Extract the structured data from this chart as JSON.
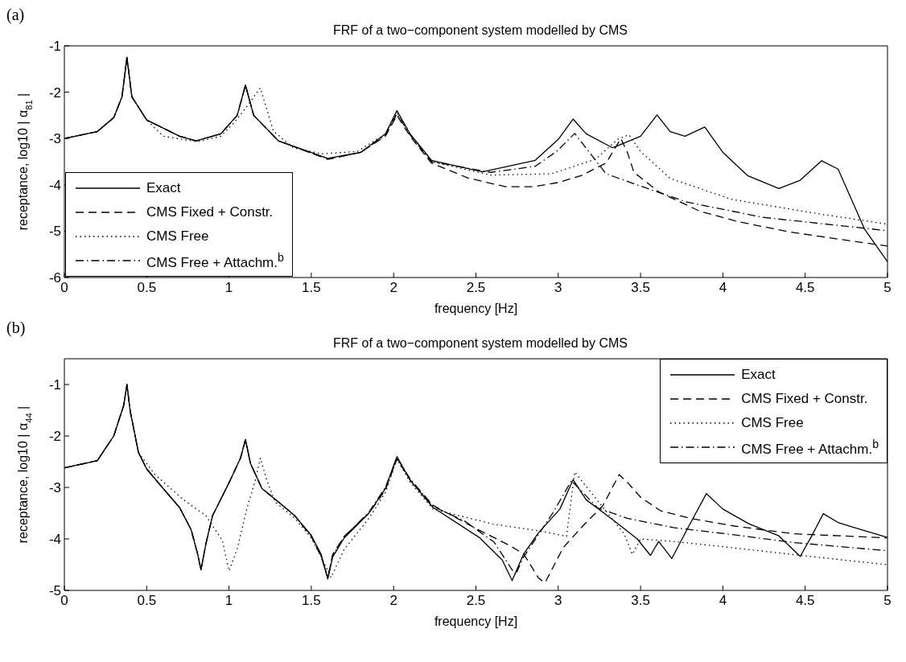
{
  "chart_data": [
    {
      "type": "line",
      "title": "FRF of a two−component system modelled by CMS",
      "xlabel": "frequency [Hz]",
      "ylabel": "receptance, log10 | α$_{81}$ |",
      "annotations": [
        "(a)"
      ],
      "xlim": [
        0,
        5
      ],
      "xticks": [
        0,
        0.5,
        1,
        1.5,
        2,
        2.5,
        3,
        3.5,
        4,
        4.5,
        5
      ],
      "ylim": [
        -6,
        -1
      ],
      "yticks": [
        -6,
        -5,
        -4,
        -3,
        -2,
        -1
      ],
      "legend": "bottom left",
      "series": [
        {
          "name": "Exact",
          "color": "#000000",
          "line_style": "solid",
          "x": [
            0,
            0.2,
            0.3,
            0.35,
            0.38,
            0.41,
            0.5,
            0.7,
            0.8,
            0.95,
            1.05,
            1.1,
            1.15,
            1.3,
            1.6,
            1.8,
            1.95,
            2.02,
            2.1,
            2.23,
            2.54,
            2.86,
            3.0,
            3.09,
            3.17,
            3.33,
            3.5,
            3.6,
            3.68,
            3.77,
            3.89,
            4.0,
            4.15,
            4.34,
            4.47,
            4.6,
            4.7,
            4.86,
            5.0
          ],
          "values": [
            -3.0,
            -2.85,
            -2.55,
            -2.1,
            -1.25,
            -2.1,
            -2.6,
            -2.95,
            -3.05,
            -2.9,
            -2.5,
            -1.85,
            -2.5,
            -3.05,
            -3.43,
            -3.3,
            -2.9,
            -2.4,
            -2.9,
            -3.47,
            -3.72,
            -3.47,
            -3.02,
            -2.58,
            -2.9,
            -3.2,
            -2.95,
            -2.49,
            -2.85,
            -2.95,
            -2.75,
            -3.3,
            -3.8,
            -4.08,
            -3.9,
            -3.48,
            -3.66,
            -4.95,
            -5.66
          ]
        },
        {
          "name": "CMS Fixed + Constr.",
          "color": "#000000",
          "line_style": "dashed",
          "x": [
            0,
            0.2,
            0.3,
            0.35,
            0.38,
            0.41,
            0.5,
            0.7,
            0.8,
            0.95,
            1.05,
            1.1,
            1.15,
            1.3,
            1.6,
            1.8,
            1.95,
            2.02,
            2.1,
            2.23,
            2.45,
            2.68,
            2.85,
            3.0,
            3.14,
            3.29,
            3.35,
            3.38,
            3.42,
            3.46,
            3.61,
            3.86,
            4.1,
            4.41,
            4.7,
            4.92,
            5.0
          ],
          "values": [
            -3.0,
            -2.85,
            -2.55,
            -2.1,
            -1.25,
            -2.1,
            -2.6,
            -2.95,
            -3.05,
            -2.9,
            -2.5,
            -1.85,
            -2.5,
            -3.05,
            -3.45,
            -3.3,
            -2.95,
            -2.5,
            -2.95,
            -3.53,
            -3.85,
            -4.04,
            -4.04,
            -3.95,
            -3.8,
            -3.53,
            -3.18,
            -3.0,
            -3.3,
            -3.73,
            -4.15,
            -4.57,
            -4.8,
            -5.02,
            -5.17,
            -5.28,
            -5.32
          ]
        },
        {
          "name": "CMS Free",
          "color": "#000000",
          "line_style": "dotted",
          "x": [
            0,
            0.2,
            0.3,
            0.35,
            0.38,
            0.41,
            0.5,
            0.6,
            0.81,
            0.95,
            1.03,
            1.1,
            1.19,
            1.27,
            1.39,
            1.56,
            1.78,
            1.95,
            2.02,
            2.1,
            2.23,
            2.59,
            2.96,
            3.23,
            3.36,
            3.43,
            3.5,
            3.68,
            4.05,
            4.59,
            4.97,
            5.0
          ],
          "values": [
            -3.0,
            -2.85,
            -2.55,
            -2.1,
            -1.25,
            -2.1,
            -2.6,
            -2.95,
            -3.07,
            -2.95,
            -2.66,
            -2.35,
            -1.91,
            -2.84,
            -3.2,
            -3.33,
            -3.28,
            -2.9,
            -2.45,
            -2.9,
            -3.5,
            -3.79,
            -3.76,
            -3.44,
            -3.02,
            -2.92,
            -3.28,
            -3.86,
            -4.31,
            -4.63,
            -4.83,
            -4.85
          ]
        },
        {
          "name": "CMS Free + Attachm.$^{b}$",
          "color": "#000000",
          "line_style": "dashdot",
          "x": [
            0,
            0.2,
            0.3,
            0.35,
            0.38,
            0.41,
            0.5,
            0.7,
            0.8,
            0.95,
            1.05,
            1.1,
            1.15,
            1.3,
            1.6,
            1.8,
            1.95,
            2.02,
            2.1,
            2.23,
            2.59,
            2.86,
            2.99,
            3.1,
            3.17,
            3.29,
            3.47,
            3.78,
            4.24,
            5.0
          ],
          "values": [
            -3.0,
            -2.85,
            -2.55,
            -2.1,
            -1.25,
            -2.1,
            -2.6,
            -2.95,
            -3.05,
            -2.9,
            -2.5,
            -1.85,
            -2.5,
            -3.05,
            -3.44,
            -3.3,
            -2.93,
            -2.47,
            -2.92,
            -3.5,
            -3.73,
            -3.6,
            -3.28,
            -2.89,
            -3.21,
            -3.76,
            -3.99,
            -4.37,
            -4.7,
            -4.99
          ]
        }
      ]
    },
    {
      "type": "line",
      "title": "FRF of a two−component system modelled by CMS",
      "xlabel": "frequency [Hz]",
      "ylabel": "receptance, log10 | α$_{44}$ |",
      "annotations": [
        "(b)"
      ],
      "xlim": [
        0,
        5
      ],
      "xticks": [
        0,
        0.5,
        1,
        1.5,
        2,
        2.5,
        3,
        3.5,
        4,
        4.5,
        5
      ],
      "ylim": [
        -5,
        -0.5
      ],
      "yticks": [
        -5,
        -4,
        -3,
        -2,
        -1
      ],
      "legend": "top right",
      "series": [
        {
          "name": "Exact",
          "color": "#000000",
          "line_style": "solid",
          "x": [
            0,
            0.2,
            0.3,
            0.36,
            0.38,
            0.4,
            0.45,
            0.5,
            0.6,
            0.7,
            0.77,
            0.81,
            0.83,
            0.86,
            0.9,
            1.0,
            1.07,
            1.1,
            1.13,
            1.2,
            1.3,
            1.4,
            1.5,
            1.56,
            1.6,
            1.63,
            1.7,
            1.85,
            1.95,
            2.02,
            2.1,
            2.24,
            2.52,
            2.66,
            2.72,
            2.79,
            2.88,
            3.01,
            3.09,
            3.17,
            3.34,
            3.48,
            3.56,
            3.61,
            3.69,
            3.8,
            3.9,
            4.0,
            4.16,
            4.34,
            4.47,
            4.54,
            4.61,
            4.7,
            4.79,
            5.0
          ],
          "values": [
            -2.62,
            -2.48,
            -2.0,
            -1.41,
            -1.0,
            -1.52,
            -2.32,
            -2.64,
            -3.02,
            -3.39,
            -3.82,
            -4.3,
            -4.6,
            -4.09,
            -3.55,
            -2.91,
            -2.43,
            -2.07,
            -2.53,
            -3.02,
            -3.28,
            -3.55,
            -3.93,
            -4.3,
            -4.78,
            -4.35,
            -3.98,
            -3.5,
            -3.02,
            -2.4,
            -2.86,
            -3.39,
            -3.97,
            -4.41,
            -4.81,
            -4.29,
            -3.88,
            -3.42,
            -2.85,
            -3.24,
            -3.65,
            -4.0,
            -4.32,
            -4.05,
            -4.38,
            -3.71,
            -3.12,
            -3.42,
            -3.71,
            -3.94,
            -4.34,
            -3.94,
            -3.51,
            -3.68,
            -3.77,
            -3.97
          ]
        },
        {
          "name": "CMS Fixed + Constr.",
          "color": "#000000",
          "line_style": "dashed",
          "x": [
            0,
            0.2,
            0.3,
            0.36,
            0.38,
            0.4,
            0.45,
            0.5,
            0.6,
            0.7,
            0.77,
            0.81,
            0.83,
            0.86,
            0.9,
            1.0,
            1.07,
            1.1,
            1.13,
            1.2,
            1.3,
            1.4,
            1.5,
            1.56,
            1.6,
            1.63,
            1.7,
            1.85,
            1.95,
            2.02,
            2.1,
            2.24,
            2.52,
            2.7,
            2.79,
            2.88,
            2.92,
            3.03,
            3.16,
            3.27,
            3.37,
            3.42,
            3.5,
            3.62,
            3.8,
            4.07,
            4.43,
            5.0
          ],
          "values": [
            -2.62,
            -2.48,
            -2.0,
            -1.41,
            -1.0,
            -1.52,
            -2.32,
            -2.64,
            -3.02,
            -3.39,
            -3.82,
            -4.3,
            -4.6,
            -4.09,
            -3.55,
            -2.91,
            -2.43,
            -2.07,
            -2.53,
            -3.02,
            -3.28,
            -3.55,
            -3.95,
            -4.35,
            -4.75,
            -4.3,
            -3.95,
            -3.5,
            -3.05,
            -2.45,
            -2.85,
            -3.35,
            -3.83,
            -4.12,
            -4.29,
            -4.76,
            -4.85,
            -4.17,
            -3.71,
            -3.36,
            -2.75,
            -2.9,
            -3.19,
            -3.45,
            -3.6,
            -3.75,
            -3.9,
            -3.98
          ]
        },
        {
          "name": "CMS Free",
          "color": "#000000",
          "line_style": "dotted",
          "x": [
            0,
            0.2,
            0.3,
            0.36,
            0.38,
            0.4,
            0.45,
            0.55,
            0.72,
            0.86,
            0.96,
            1.0,
            1.05,
            1.11,
            1.16,
            1.19,
            1.23,
            1.28,
            1.4,
            1.5,
            1.56,
            1.62,
            1.7,
            1.85,
            1.95,
            2.02,
            2.1,
            2.24,
            2.6,
            2.9,
            3.05,
            3.08,
            3.1,
            3.15,
            3.25,
            3.4,
            3.45,
            3.5,
            3.7,
            4.0,
            4.5,
            5.0
          ],
          "values": [
            -2.62,
            -2.48,
            -2.0,
            -1.41,
            -1.0,
            -1.52,
            -2.32,
            -2.75,
            -3.23,
            -3.55,
            -4.03,
            -4.62,
            -4.19,
            -3.39,
            -2.86,
            -2.43,
            -2.86,
            -3.28,
            -3.6,
            -3.98,
            -4.35,
            -4.75,
            -4.2,
            -3.6,
            -3.1,
            -2.45,
            -2.9,
            -3.42,
            -3.71,
            -3.85,
            -3.95,
            -3.2,
            -2.7,
            -2.9,
            -3.3,
            -3.9,
            -4.3,
            -4.0,
            -4.05,
            -4.15,
            -4.33,
            -4.5
          ]
        },
        {
          "name": "CMS Free + Attachm.$^{b}$",
          "color": "#000000",
          "line_style": "dashdot",
          "x": [
            0,
            0.2,
            0.3,
            0.36,
            0.38,
            0.4,
            0.45,
            0.5,
            0.6,
            0.7,
            0.77,
            0.81,
            0.83,
            0.86,
            0.9,
            1.0,
            1.07,
            1.1,
            1.13,
            1.2,
            1.3,
            1.4,
            1.5,
            1.56,
            1.6,
            1.63,
            1.7,
            1.85,
            1.95,
            2.02,
            2.1,
            2.24,
            2.43,
            2.61,
            2.74,
            2.79,
            2.97,
            3.08,
            3.15,
            3.24,
            3.42,
            3.7,
            4.07,
            4.43,
            5.0
          ],
          "values": [
            -2.62,
            -2.48,
            -2.0,
            -1.41,
            -1.0,
            -1.52,
            -2.32,
            -2.64,
            -3.02,
            -3.39,
            -3.82,
            -4.3,
            -4.6,
            -4.09,
            -3.55,
            -2.91,
            -2.43,
            -2.07,
            -2.53,
            -3.02,
            -3.28,
            -3.55,
            -3.95,
            -4.33,
            -4.76,
            -4.32,
            -3.96,
            -3.48,
            -3.0,
            -2.42,
            -2.83,
            -3.37,
            -3.65,
            -4.06,
            -4.7,
            -4.35,
            -3.48,
            -2.87,
            -3.1,
            -3.4,
            -3.6,
            -3.78,
            -3.92,
            -4.07,
            -4.23
          ]
        }
      ]
    }
  ]
}
